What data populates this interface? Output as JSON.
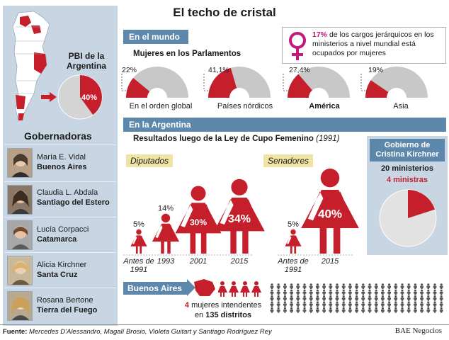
{
  "title": "El techo de cristal",
  "colors": {
    "accent": "#c61f2c",
    "bar": "#5d87ab",
    "panel": "#c7d6e2",
    "gray": "#c8c8c8",
    "pink": "#c2197a"
  },
  "left": {
    "pbi_label": "PBI de la Argentina",
    "pbi_pct": "40%",
    "pbi_value": 0.4,
    "governors_title": "Gobernadoras",
    "governors": [
      {
        "name": "María E. Vidal",
        "province": "Buenos Aires"
      },
      {
        "name": "Claudia L. Abdala",
        "province": "Santiago del Estero"
      },
      {
        "name": "Lucía Corpacci",
        "province": "Catamarca"
      },
      {
        "name": "Alicia Kirchner",
        "province": "Santa Cruz"
      },
      {
        "name": "Rosana Bertone",
        "province": "Tierra del Fuego"
      }
    ]
  },
  "world": {
    "header": "En el mundo",
    "subtitle": "Mujeres en los Parlamentos",
    "gauges": [
      {
        "pct": "22%",
        "value": 0.22,
        "label": "En el orden global"
      },
      {
        "pct": "41,1%",
        "value": 0.411,
        "label": "Países nórdicos"
      },
      {
        "pct": "27,4%",
        "value": 0.274,
        "label": "América"
      },
      {
        "pct": "19%",
        "value": 0.19,
        "label": "Asia"
      }
    ],
    "note_pct": "17%",
    "note_text": "de los cargos jerárquicos en los ministerios a nivel mundial está ocupados por mujeres"
  },
  "argentina": {
    "header": "En la Argentina",
    "subtitle": "Resultados luego de la Ley de Cupo Femenino",
    "subtitle_year": "(1991)",
    "diputados_tag": "Diputados",
    "senadores_tag": "Senadores",
    "diputados": [
      {
        "pct": "5%",
        "year": "Antes de 1991",
        "value": 5
      },
      {
        "pct": "14%",
        "year": "1993",
        "value": 14
      },
      {
        "pct": "30%",
        "year": "2001",
        "value": 30
      },
      {
        "pct": "34%",
        "year": "2015",
        "value": 34
      }
    ],
    "senadores": [
      {
        "pct": "5%",
        "year": "Antes de 1991",
        "value": 5
      },
      {
        "pct": "40%",
        "year": "2015",
        "value": 40
      }
    ],
    "gov_title": "Gobierno de Cristina Kirchner",
    "gov_ministers": "20 ministerios",
    "gov_women": "4 ministras",
    "gov_value": 0.2,
    "ba_label": "Buenos Aires",
    "ba_line1_num": "4",
    "ba_line1": "mujeres intendentes",
    "ba_line2_pre": "en",
    "ba_line2_num": "135 distritos",
    "women_count": 4,
    "districts_count": 135
  },
  "footer": {
    "source_label": "Fuente:",
    "source_text": "Mercedes D'Alessandro, Magalí Brosio, Violeta Guitart y Santiago Rodríguez Rey",
    "brand": "BAE Negocios"
  }
}
